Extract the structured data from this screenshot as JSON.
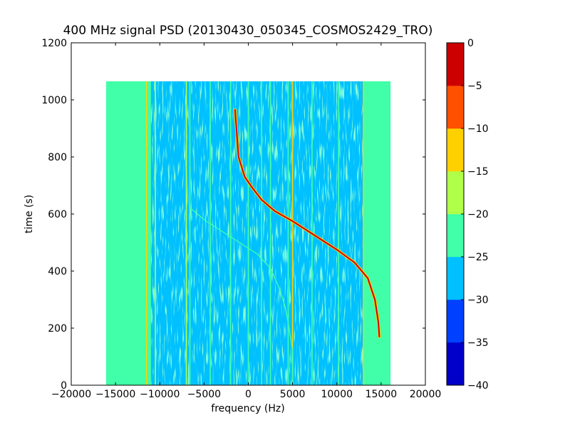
{
  "chart_data": {
    "type": "heatmap",
    "title": "400 MHz signal PSD (20130430_050345_COSMOS2429_TRO)",
    "xlabel": "frequency (Hz)",
    "ylabel": "time (s)",
    "xlim": [
      -20000,
      20000
    ],
    "ylim": [
      0,
      1200
    ],
    "xticks": [
      -20000,
      -15000,
      -10000,
      -5000,
      0,
      5000,
      10000,
      15000,
      20000
    ],
    "xtick_labels": [
      "−20000",
      "−15000",
      "−10000",
      "−5000",
      "0",
      "5000",
      "10000",
      "15000",
      "20000"
    ],
    "yticks": [
      0,
      200,
      400,
      600,
      800,
      1000,
      1200
    ],
    "ytick_labels": [
      "0",
      "200",
      "400",
      "600",
      "800",
      "1000",
      "1200"
    ],
    "data_extent": {
      "freq_min": -16000,
      "freq_max": 16000,
      "time_min": 0,
      "time_max": 1065
    },
    "colorbar": {
      "levels": [
        -40,
        -35,
        -30,
        -25,
        -20,
        -15,
        -10,
        -5,
        0
      ],
      "tick_labels": [
        "−40",
        "−35",
        "−30",
        "−25",
        "−20",
        "−15",
        "−10",
        "−5",
        "0"
      ],
      "colors": [
        "#0000c8",
        "#0040ff",
        "#00c0ff",
        "#40ffa8",
        "#b0ff48",
        "#ffd000",
        "#ff5000",
        "#cc0000"
      ]
    },
    "background_level": [
      -25,
      -20
    ],
    "band_level": [
      -30,
      -25
    ],
    "band_freq_range": [
      -11000,
      13000
    ],
    "vertical_lines": [
      {
        "freq": -16000,
        "level": [
          -25,
          -20
        ]
      },
      {
        "freq": -11500,
        "level": [
          -15,
          -10
        ]
      },
      {
        "freq": -10500,
        "level": [
          -20,
          -15
        ]
      },
      {
        "freq": -7000,
        "level": [
          -20,
          -15
        ]
      },
      {
        "freq": -6600,
        "level": [
          -25,
          -20
        ]
      },
      {
        "freq": -4300,
        "level": [
          -25,
          -20
        ]
      },
      {
        "freq": -2000,
        "level": [
          -25,
          -20
        ]
      },
      {
        "freq": 0,
        "level": [
          -25,
          -20
        ]
      },
      {
        "freq": 1500,
        "level": [
          -25,
          -20
        ]
      },
      {
        "freq": 2500,
        "level": [
          -25,
          -20
        ]
      },
      {
        "freq": 5000,
        "level": [
          -15,
          -10
        ]
      },
      {
        "freq": 4500,
        "level": [
          -25,
          -20
        ]
      },
      {
        "freq": 7200,
        "level": [
          -25,
          -20
        ]
      },
      {
        "freq": 10200,
        "level": [
          -25,
          -20
        ]
      },
      {
        "freq": 13000,
        "level": [
          -15,
          -10
        ]
      },
      {
        "freq": 16000,
        "level": [
          -25,
          -20
        ]
      }
    ],
    "series": [
      {
        "level": [
          -5,
          0
        ],
        "points": [
          [
            -1500,
            965
          ],
          [
            -1100,
            800
          ],
          [
            -400,
            730
          ],
          [
            500,
            690
          ],
          [
            1500,
            650
          ],
          [
            3000,
            610
          ],
          [
            5000,
            575
          ],
          [
            8000,
            515
          ],
          [
            10000,
            475
          ],
          [
            12000,
            430
          ],
          [
            13500,
            375
          ],
          [
            14300,
            300
          ],
          [
            14700,
            220
          ],
          [
            14800,
            170
          ]
        ]
      },
      {
        "level": [
          -25,
          -20
        ],
        "points": [
          [
            -6500,
            620
          ],
          [
            -5000,
            580
          ],
          [
            -3000,
            540
          ],
          [
            -1000,
            500
          ],
          [
            1000,
            460
          ],
          [
            2500,
            410
          ],
          [
            3500,
            340
          ],
          [
            4200,
            270
          ],
          [
            4600,
            200
          ],
          [
            5000,
            120
          ],
          [
            5000,
            0
          ]
        ]
      }
    ]
  }
}
